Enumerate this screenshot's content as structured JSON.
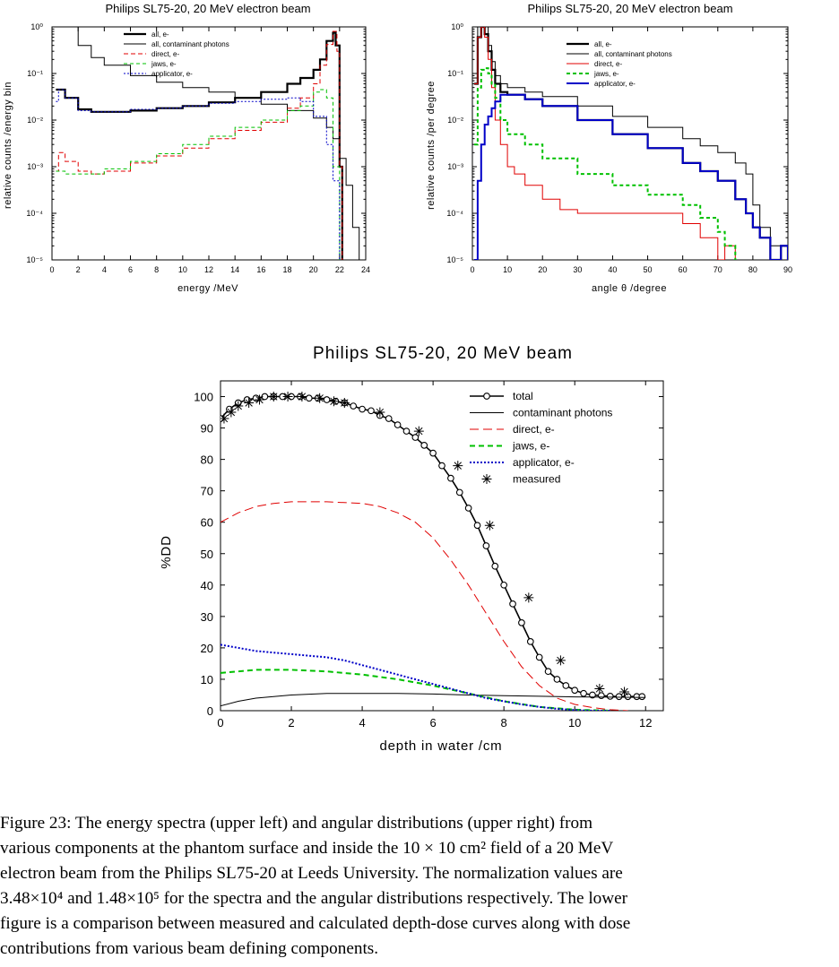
{
  "caption": {
    "lines": [
      "Figure 23: The energy spectra (upper left) and angular distributions (upper right) from",
      "various components at the phantom surface and inside the 10 × 10 cm² field of a 20 MeV",
      "electron beam from the Philips SL75-20 at Leeds University. The normalization values are",
      "3.48×10⁴ and 1.48×10⁵ for the spectra and the angular distributions respectively. The lower",
      "figure is a comparison between measured and calculated depth-dose curves along with dose",
      "contributions from various beam defining components."
    ]
  },
  "colors": {
    "total": "#000000",
    "contaminant": "#000000",
    "direct": "#e00000",
    "jaws": "#00c000",
    "applicator": "#0000c8"
  },
  "chart_data": [
    {
      "type": "line",
      "title": "Philips SL75-20, 20 MeV electron beam",
      "xlabel": "energy /MeV",
      "ylabel": "relative counts /energy bin",
      "xlim": [
        0,
        24
      ],
      "ylim_log10": [
        -5,
        0
      ],
      "xticks": [
        "0",
        "2",
        "4",
        "6",
        "8",
        "10",
        "12",
        "14",
        "16",
        "18",
        "20",
        "22",
        "24"
      ],
      "yticks": [
        "10⁰",
        "10⁻¹",
        "10⁻²",
        "10⁻³",
        "10⁻⁴",
        "10⁻⁵"
      ],
      "legend_position": "top-right",
      "series": [
        {
          "name": "all, e-",
          "key": "total",
          "width": 2.2,
          "dash": "",
          "x": [
            0.3,
            0.5,
            1,
            2,
            3,
            4,
            6,
            8,
            10,
            12,
            14,
            16,
            18,
            19,
            20,
            20.5,
            21,
            21.5,
            21.7,
            22,
            22.2
          ],
          "y": [
            0.045,
            0.045,
            0.03,
            0.017,
            0.015,
            0.015,
            0.016,
            0.018,
            0.02,
            0.024,
            0.03,
            0.04,
            0.06,
            0.08,
            0.12,
            0.2,
            0.5,
            0.75,
            0.4,
            0.001,
            1e-05
          ]
        },
        {
          "name": "all, contaminant photons",
          "key": "contaminant",
          "width": 1,
          "dash": "",
          "x": [
            0.1,
            0.5,
            1,
            2,
            3,
            4,
            6,
            8,
            10,
            12,
            14,
            16,
            18,
            20,
            21,
            21.5,
            22,
            22.5,
            23,
            23.5
          ],
          "y": [
            4,
            2,
            1,
            0.4,
            0.22,
            0.15,
            0.09,
            0.065,
            0.05,
            0.04,
            0.03,
            0.022,
            0.016,
            0.011,
            0.007,
            0.004,
            0.0015,
            0.0004,
            5e-05,
            1e-05
          ]
        },
        {
          "name": "direct, e-",
          "key": "direct",
          "width": 1,
          "dash": "5,3",
          "x": [
            0.3,
            0.5,
            1,
            2,
            3,
            4,
            6,
            8,
            10,
            12,
            14,
            16,
            18,
            19,
            20,
            20.5,
            21,
            21.5,
            21.8,
            22,
            22.2
          ],
          "y": [
            0.0008,
            0.002,
            0.0013,
            0.0008,
            0.0007,
            0.0008,
            0.0012,
            0.0017,
            0.0025,
            0.004,
            0.006,
            0.009,
            0.018,
            0.03,
            0.06,
            0.15,
            0.42,
            0.8,
            0.3,
            0.001,
            1e-05
          ]
        },
        {
          "name": "jaws, e-",
          "key": "jaws",
          "width": 1,
          "dash": "4,3",
          "x": [
            0.3,
            1,
            2,
            4,
            6,
            8,
            10,
            12,
            14,
            16,
            18,
            19,
            20,
            20.5,
            21,
            21.5,
            22
          ],
          "y": [
            0.0008,
            0.0007,
            0.0007,
            0.0009,
            0.0013,
            0.0019,
            0.003,
            0.0045,
            0.007,
            0.01,
            0.016,
            0.02,
            0.04,
            0.045,
            0.03,
            0.001,
            1e-05
          ]
        },
        {
          "name": "applicator, e-",
          "key": "applicator",
          "width": 1,
          "dash": "2,2",
          "x": [
            0.3,
            0.5,
            1,
            2,
            3,
            4,
            6,
            8,
            10,
            12,
            14,
            16,
            18,
            19,
            20,
            21,
            21.5,
            22
          ],
          "y": [
            0.025,
            0.045,
            0.03,
            0.016,
            0.015,
            0.015,
            0.017,
            0.018,
            0.02,
            0.023,
            0.025,
            0.028,
            0.03,
            0.025,
            0.012,
            0.003,
            0.0005,
            1e-05
          ]
        }
      ]
    },
    {
      "type": "line",
      "title": "Philips SL75-20, 20 MeV electron beam",
      "xlabel": "angle θ /degree",
      "ylabel": "relative counts /per degree",
      "xlim": [
        0,
        90
      ],
      "ylim_log10": [
        -5,
        0
      ],
      "xticks": [
        "0",
        "10",
        "20",
        "30",
        "40",
        "50",
        "60",
        "70",
        "80",
        "90"
      ],
      "yticks": [
        "10⁰",
        "10⁻¹",
        "10⁻²",
        "10⁻³",
        "10⁻⁴",
        "10⁻⁵"
      ],
      "legend_position": "top-right",
      "series": [
        {
          "name": "all, e-",
          "key": "total",
          "width": 2.2,
          "dash": "",
          "x": [
            0.5,
            1.5,
            2.5,
            3.5,
            4.5,
            5.5,
            6.5,
            8,
            10,
            15,
            20,
            30,
            40,
            50,
            60,
            65,
            70,
            75,
            78,
            80,
            82,
            85,
            88,
            90
          ],
          "y": [
            0.06,
            0.6,
            1,
            0.7,
            0.3,
            0.12,
            0.06,
            0.04,
            0.035,
            0.028,
            0.02,
            0.01,
            0.005,
            0.0025,
            0.0012,
            0.0008,
            0.0005,
            0.0002,
            0.0001,
            5e-05,
            3e-05,
            1e-05,
            2e-05,
            1e-05
          ]
        },
        {
          "name": "all, contaminant photons",
          "key": "contaminant",
          "width": 1,
          "dash": "",
          "x": [
            0.5,
            1.5,
            2.5,
            3.5,
            4.5,
            5.5,
            6.5,
            8,
            10,
            15,
            20,
            30,
            40,
            50,
            60,
            65,
            70,
            75,
            78,
            80,
            82,
            85,
            88,
            90
          ],
          "y": [
            0.08,
            1.2,
            2,
            1,
            0.4,
            0.18,
            0.09,
            0.06,
            0.05,
            0.04,
            0.032,
            0.02,
            0.012,
            0.007,
            0.004,
            0.0028,
            0.002,
            0.0012,
            0.0007,
            0.00015,
            5e-05,
            2e-05,
            1e-05,
            1e-05
          ]
        },
        {
          "name": "direct, e-",
          "key": "direct",
          "width": 1,
          "dash": "",
          "x": [
            0.5,
            1.5,
            2.5,
            3.5,
            4.5,
            5.5,
            6.5,
            8,
            10,
            12,
            15,
            20,
            25,
            30,
            40,
            50,
            60,
            65,
            70,
            72,
            75
          ],
          "y": [
            0.06,
            0.6,
            1,
            0.6,
            0.2,
            0.05,
            0.01,
            0.003,
            0.001,
            0.0007,
            0.0004,
            0.0002,
            0.00012,
            0.0001,
            0.0001,
            0.0001,
            6e-05,
            3e-05,
            1e-05,
            2e-05,
            1e-05
          ]
        },
        {
          "name": "jaws, e-",
          "key": "jaws",
          "width": 2,
          "dash": "4,3",
          "x": [
            0.5,
            1.5,
            2.5,
            3.5,
            4.5,
            5.5,
            6.5,
            8,
            10,
            15,
            20,
            30,
            40,
            50,
            60,
            65,
            70,
            72,
            75
          ],
          "y": [
            0.003,
            0.05,
            0.12,
            0.13,
            0.1,
            0.06,
            0.03,
            0.01,
            0.005,
            0.003,
            0.0015,
            0.0007,
            0.0004,
            0.00025,
            0.00015,
            8e-05,
            4e-05,
            2e-05,
            1e-05
          ]
        },
        {
          "name": "applicator, e-",
          "key": "applicator",
          "width": 2,
          "dash": "",
          "x": [
            0.5,
            1.5,
            2.5,
            3.5,
            4.5,
            5.5,
            6.5,
            8,
            10,
            15,
            20,
            30,
            40,
            50,
            60,
            65,
            70,
            75,
            78,
            80,
            82,
            85,
            88,
            90
          ],
          "y": [
            1e-05,
            0.0005,
            0.003,
            0.008,
            0.012,
            0.018,
            0.025,
            0.035,
            0.035,
            0.028,
            0.02,
            0.01,
            0.005,
            0.0025,
            0.0012,
            0.0008,
            0.0005,
            0.0002,
            0.0001,
            5e-05,
            3e-05,
            1e-05,
            2e-05,
            1e-05
          ]
        }
      ]
    },
    {
      "type": "line",
      "title": "Philips SL75-20, 20 MeV beam",
      "xlabel": "depth in water /cm",
      "ylabel": "%DD",
      "xlim": [
        0,
        12.5
      ],
      "ylim": [
        0,
        105
      ],
      "xticks": [
        0,
        2,
        4,
        6,
        8,
        10,
        12
      ],
      "yticks": [
        0,
        10,
        20,
        30,
        40,
        50,
        60,
        70,
        80,
        90,
        100
      ],
      "legend_position": "top-right",
      "series": [
        {
          "name": "total",
          "key": "total",
          "width": 1.6,
          "dash": "",
          "marker": "circle",
          "x": [
            0,
            0.25,
            0.5,
            0.75,
            1,
            1.25,
            1.5,
            1.75,
            2,
            2.25,
            2.5,
            2.75,
            3,
            3.25,
            3.5,
            3.75,
            4,
            4.25,
            4.5,
            4.75,
            5,
            5.25,
            5.5,
            5.75,
            6,
            6.25,
            6.5,
            6.75,
            7,
            7.25,
            7.5,
            7.75,
            8,
            8.25,
            8.5,
            8.75,
            9,
            9.25,
            9.5,
            9.75,
            10,
            10.25,
            10.5,
            10.75,
            11,
            11.25,
            11.5,
            11.75,
            11.9
          ],
          "y": [
            93,
            96,
            98,
            99,
            99.5,
            100,
            100,
            100,
            100,
            100,
            99.5,
            99.5,
            99,
            98.5,
            98,
            97,
            96,
            95.5,
            94,
            93,
            91,
            89,
            87,
            84.5,
            82,
            78,
            74,
            69.5,
            64.5,
            59,
            52.5,
            46,
            40,
            34,
            28,
            22,
            17,
            12.5,
            10,
            8,
            6.5,
            5.5,
            5,
            4.8,
            4.6,
            4.5,
            4.5,
            4.5,
            4.5
          ]
        },
        {
          "name": "contaminant photons",
          "key": "contaminant",
          "width": 1,
          "dash": "",
          "x": [
            0,
            0.5,
            1,
            2,
            3,
            4,
            5,
            6,
            7,
            8,
            9,
            10,
            11,
            12
          ],
          "y": [
            1.5,
            3,
            4,
            5,
            5.5,
            5.5,
            5.5,
            5.3,
            5,
            4.8,
            4.6,
            4.4,
            4.3,
            4.2
          ]
        },
        {
          "name": "direct, e-",
          "key": "direct",
          "width": 1,
          "dash": "10,5",
          "x": [
            0,
            0.5,
            1,
            1.5,
            2,
            3,
            4,
            4.5,
            5,
            5.5,
            6,
            6.5,
            7,
            7.5,
            8,
            8.5,
            9,
            9.5,
            10,
            10.5,
            11,
            11.5
          ],
          "y": [
            60,
            63,
            65,
            66,
            66.5,
            66.5,
            66,
            65,
            63,
            60,
            55,
            48,
            40,
            31,
            22,
            14,
            8,
            4,
            2,
            1,
            0.3,
            0
          ]
        },
        {
          "name": "jaws, e-",
          "key": "jaws",
          "width": 2,
          "dash": "6,4",
          "x": [
            0,
            0.5,
            1,
            1.5,
            2,
            3,
            4,
            5,
            6,
            7,
            8,
            9,
            10,
            11
          ],
          "y": [
            12,
            12.5,
            13,
            13,
            13,
            12.5,
            11.5,
            10,
            8,
            5.5,
            3,
            1.2,
            0.3,
            0
          ]
        },
        {
          "name": "applicator, e-",
          "key": "applicator",
          "width": 2,
          "dash": "2,2",
          "x": [
            0,
            0.5,
            1,
            1.5,
            2,
            2.5,
            3,
            3.5,
            4,
            4.5,
            5,
            5.5,
            6,
            6.5,
            7,
            7.5,
            8,
            8.5,
            9,
            9.5,
            10,
            10.5,
            11
          ],
          "y": [
            21,
            20,
            19,
            18.5,
            18,
            17.5,
            17,
            16,
            14.5,
            13,
            11.5,
            10,
            8.5,
            7,
            5.5,
            4,
            3,
            2,
            1.2,
            0.6,
            0.2,
            0,
            0
          ]
        },
        {
          "name": "measured",
          "key": "total",
          "marker": "star",
          "line": false,
          "x": [
            0.1,
            0.3,
            0.5,
            0.8,
            1.1,
            1.5,
            1.9,
            2.3,
            2.8,
            3.2,
            3.5,
            4.5,
            5.6,
            6.7,
            7.6,
            8.7,
            9.6,
            10.7,
            11.4
          ],
          "y": [
            93,
            95,
            97,
            98,
            99,
            100,
            100,
            100,
            99.5,
            98.5,
            98,
            95,
            89,
            78,
            59,
            36,
            16,
            7,
            6
          ]
        }
      ]
    }
  ]
}
